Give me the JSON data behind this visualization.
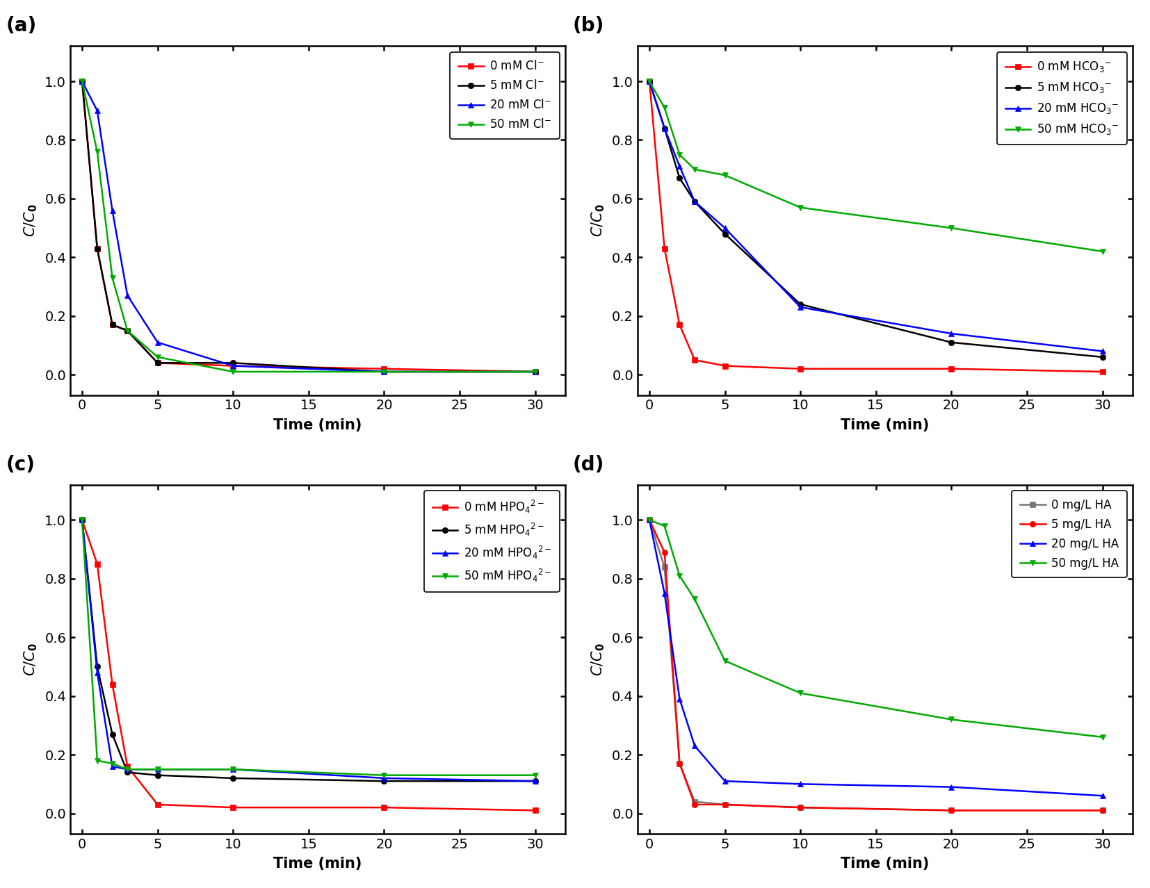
{
  "panel_a": {
    "label": "(a)",
    "xlabel": "Time (min)",
    "ylabel": "C/C₀",
    "xlim": [
      -0.8,
      32
    ],
    "ylim": [
      -0.07,
      1.12
    ],
    "xticks": [
      0,
      5,
      10,
      15,
      20,
      25,
      30
    ],
    "yticks": [
      0.0,
      0.2,
      0.4,
      0.6,
      0.8,
      1.0
    ],
    "series": [
      {
        "x": [
          0,
          1,
          2,
          3,
          5,
          10,
          20,
          30
        ],
        "y": [
          1.0,
          0.43,
          0.17,
          0.15,
          0.04,
          0.03,
          0.02,
          0.01
        ],
        "color": "#FF0000",
        "marker": "s",
        "label": "0 mM Cl$^{-}$"
      },
      {
        "x": [
          0,
          1,
          2,
          3,
          5,
          10,
          20,
          30
        ],
        "y": [
          1.0,
          0.43,
          0.17,
          0.15,
          0.04,
          0.04,
          0.01,
          0.01
        ],
        "color": "#000000",
        "marker": "o",
        "label": "5 mM Cl$^{-}$"
      },
      {
        "x": [
          0,
          1,
          2,
          3,
          5,
          10,
          20,
          30
        ],
        "y": [
          1.0,
          0.9,
          0.56,
          0.27,
          0.11,
          0.03,
          0.01,
          0.01
        ],
        "color": "#0000FF",
        "marker": "^",
        "label": "20 mM Cl$^{-}$"
      },
      {
        "x": [
          0,
          1,
          2,
          3,
          5,
          10,
          20,
          30
        ],
        "y": [
          1.0,
          0.76,
          0.33,
          0.15,
          0.06,
          0.01,
          0.01,
          0.01
        ],
        "color": "#00AA00",
        "marker": "v",
        "label": "50 mM Cl$^{-}$"
      }
    ]
  },
  "panel_b": {
    "label": "(b)",
    "xlabel": "Time (min)",
    "ylabel": "C/C₀",
    "xlim": [
      -0.8,
      32
    ],
    "ylim": [
      -0.07,
      1.12
    ],
    "xticks": [
      0,
      5,
      10,
      15,
      20,
      25,
      30
    ],
    "yticks": [
      0.0,
      0.2,
      0.4,
      0.6,
      0.8,
      1.0
    ],
    "series": [
      {
        "x": [
          0,
          1,
          2,
          3,
          5,
          10,
          20,
          30
        ],
        "y": [
          1.0,
          0.43,
          0.17,
          0.05,
          0.03,
          0.02,
          0.02,
          0.01
        ],
        "color": "#FF0000",
        "marker": "s",
        "label": "0 mM HCO$_{3}$$^{-}$"
      },
      {
        "x": [
          0,
          1,
          2,
          3,
          5,
          10,
          20,
          30
        ],
        "y": [
          1.0,
          0.84,
          0.67,
          0.59,
          0.48,
          0.24,
          0.11,
          0.06
        ],
        "color": "#000000",
        "marker": "o",
        "label": "5 mM HCO$_{3}$$^{-}$"
      },
      {
        "x": [
          0,
          1,
          2,
          3,
          5,
          10,
          20,
          30
        ],
        "y": [
          1.0,
          0.84,
          0.71,
          0.59,
          0.5,
          0.23,
          0.14,
          0.08
        ],
        "color": "#0000FF",
        "marker": "^",
        "label": "20 mM HCO$_{3}$$^{-}$"
      },
      {
        "x": [
          0,
          1,
          2,
          3,
          5,
          10,
          20,
          30
        ],
        "y": [
          1.0,
          0.91,
          0.75,
          0.7,
          0.68,
          0.57,
          0.5,
          0.42
        ],
        "color": "#00AA00",
        "marker": "v",
        "label": "50 mM HCO$_{3}$$^{-}$"
      }
    ]
  },
  "panel_c": {
    "label": "(c)",
    "xlabel": "Time (min)",
    "ylabel": "C/C₀",
    "xlim": [
      -0.8,
      32
    ],
    "ylim": [
      -0.07,
      1.12
    ],
    "xticks": [
      0,
      5,
      10,
      15,
      20,
      25,
      30
    ],
    "yticks": [
      0.0,
      0.2,
      0.4,
      0.6,
      0.8,
      1.0
    ],
    "series": [
      {
        "x": [
          0,
          1,
          2,
          3,
          5,
          10,
          20,
          30
        ],
        "y": [
          1.0,
          0.85,
          0.44,
          0.16,
          0.03,
          0.02,
          0.02,
          0.01
        ],
        "color": "#FF0000",
        "marker": "s",
        "label": "0 mM HPO$_{4}$$^{2-}$"
      },
      {
        "x": [
          0,
          1,
          2,
          3,
          5,
          10,
          20,
          30
        ],
        "y": [
          1.0,
          0.5,
          0.27,
          0.14,
          0.13,
          0.12,
          0.11,
          0.11
        ],
        "color": "#000000",
        "marker": "o",
        "label": "5 mM HPO$_{4}$$^{2-}$"
      },
      {
        "x": [
          0,
          1,
          2,
          3,
          5,
          10,
          20,
          30
        ],
        "y": [
          1.0,
          0.48,
          0.16,
          0.15,
          0.15,
          0.15,
          0.12,
          0.11
        ],
        "color": "#0000FF",
        "marker": "^",
        "label": "20 mM HPO$_{4}$$^{2-}$"
      },
      {
        "x": [
          0,
          1,
          2,
          3,
          5,
          10,
          20,
          30
        ],
        "y": [
          1.0,
          0.18,
          0.17,
          0.15,
          0.15,
          0.15,
          0.13,
          0.13
        ],
        "color": "#00AA00",
        "marker": "v",
        "label": "50 mM HPO$_{4}$$^{2-}$"
      }
    ]
  },
  "panel_d": {
    "label": "(d)",
    "xlabel": "Time (min)",
    "ylabel": "C/C₀",
    "xlim": [
      -0.8,
      32
    ],
    "ylim": [
      -0.07,
      1.12
    ],
    "xticks": [
      0,
      5,
      10,
      15,
      20,
      25,
      30
    ],
    "yticks": [
      0.0,
      0.2,
      0.4,
      0.6,
      0.8,
      1.0
    ],
    "series": [
      {
        "x": [
          0,
          1,
          2,
          3,
          5,
          10,
          20,
          30
        ],
        "y": [
          1.0,
          0.84,
          0.17,
          0.04,
          0.03,
          0.02,
          0.01,
          0.01
        ],
        "color": "#777777",
        "marker": "s",
        "label": "0 mg/L HA"
      },
      {
        "x": [
          0,
          1,
          2,
          3,
          5,
          10,
          20,
          30
        ],
        "y": [
          1.0,
          0.89,
          0.17,
          0.03,
          0.03,
          0.02,
          0.01,
          0.01
        ],
        "color": "#FF0000",
        "marker": "o",
        "label": "5 mg/L HA"
      },
      {
        "x": [
          0,
          1,
          2,
          3,
          5,
          10,
          20,
          30
        ],
        "y": [
          1.0,
          0.75,
          0.39,
          0.23,
          0.11,
          0.1,
          0.09,
          0.06
        ],
        "color": "#0000FF",
        "marker": "^",
        "label": "20 mg/L HA"
      },
      {
        "x": [
          0,
          1,
          2,
          3,
          5,
          10,
          20,
          30
        ],
        "y": [
          1.0,
          0.98,
          0.81,
          0.73,
          0.52,
          0.41,
          0.32,
          0.26
        ],
        "color": "#00AA00",
        "marker": "v",
        "label": "50 mg/L HA"
      }
    ]
  }
}
